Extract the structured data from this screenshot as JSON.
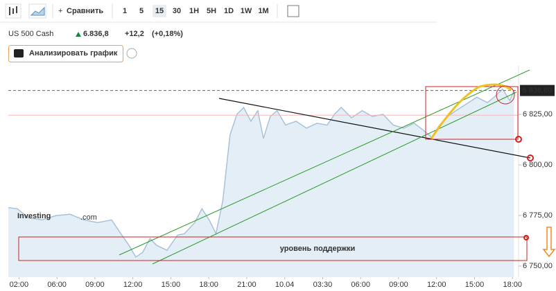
{
  "toolbar": {
    "compare": "Сравнить",
    "intervals": [
      "1",
      "5",
      "15",
      "30",
      "1H",
      "5H",
      "1D",
      "1W",
      "1M"
    ],
    "active_interval_index": 2
  },
  "header": {
    "instrument": "US 500 Cash",
    "price": "6.836,8",
    "change": "+12,2",
    "change_pct": "(+0,18%)"
  },
  "analyze_button": "Анализировать график",
  "watermark": {
    "brand": "Investing",
    "domain": ".com"
  },
  "chart_data": {
    "type": "area",
    "color": "#a7c2d8",
    "fill": "#e4eef6",
    "x": [
      -0.28,
      -0.04,
      0.24,
      0.61,
      0.97,
      1.34,
      1.71,
      2.07,
      2.44,
      2.71,
      2.9,
      3.08,
      3.26,
      3.45,
      3.63,
      3.9,
      4.18,
      4.36,
      4.63,
      4.82,
      5.01,
      5.19,
      5.37,
      5.56,
      5.74,
      5.92,
      6.11,
      6.29,
      6.44,
      6.62,
      6.8,
      7.02,
      7.3,
      7.57,
      7.85,
      8.12,
      8.31,
      8.49,
      8.76,
      9.04,
      9.31,
      9.59,
      9.86,
      10.14,
      10.41,
      10.65,
      10.87,
      11.06,
      11.24,
      11.51,
      11.79,
      12.06,
      12.34,
      12.56,
      12.74,
      12.93,
      13.04
    ],
    "values": [
      6778.9,
      6778.3,
      6773.9,
      6772.8,
      6774.9,
      6775.6,
      6772.8,
      6771.5,
      6772.8,
      6765.3,
      6760.2,
      6754.4,
      6756.8,
      6763.6,
      6760.2,
      6757.8,
      6765.3,
      6766,
      6771.5,
      6778.3,
      6772.8,
      6766,
      6782.4,
      6814.8,
      6825,
      6828.4,
      6821.6,
      6826.8,
      6813.1,
      6824,
      6826.8,
      6819.7,
      6821.6,
      6818.2,
      6820.6,
      6819.7,
      6825,
      6828.4,
      6823.3,
      6826.8,
      6824,
      6825,
      6819.7,
      6818.2,
      6820.6,
      6817.2,
      6813.7,
      6819.2,
      6823.3,
      6826.8,
      6830.2,
      6833.5,
      6830.8,
      6834.2,
      6837.6,
      6831.8,
      6836.8
    ],
    "xlim": [
      -0.28,
      13.16
    ],
    "xticks": [
      {
        "value": 0,
        "label": "02:00"
      },
      {
        "value": 1,
        "label": "06:00"
      },
      {
        "value": 2,
        "label": "09:00"
      },
      {
        "value": 3,
        "label": "12:00"
      },
      {
        "value": 4,
        "label": "15:00"
      },
      {
        "value": 5,
        "label": "18:00"
      },
      {
        "value": 6,
        "label": "21:00"
      },
      {
        "value": 7,
        "label": "10.04"
      },
      {
        "value": 8,
        "label": "03:30"
      },
      {
        "value": 9,
        "label": "06:00"
      },
      {
        "value": 10,
        "label": "09:00"
      },
      {
        "value": 11,
        "label": "12:00"
      },
      {
        "value": 12,
        "label": "15:00"
      },
      {
        "value": 13,
        "label": "18:00"
      }
    ],
    "ylim": [
      6744.5,
      6849
    ],
    "yticks": [
      {
        "value": 6750,
        "label": "6 750,00"
      },
      {
        "value": 6775,
        "label": "6 775,00"
      },
      {
        "value": 6800,
        "label": "6 800,00"
      },
      {
        "value": 6825,
        "label": "6 825,00"
      }
    ],
    "last_price": {
      "value": 6836.8,
      "label": "6 836,80"
    },
    "prev_close": 6824.6,
    "annotation": "уровень поддержки"
  }
}
